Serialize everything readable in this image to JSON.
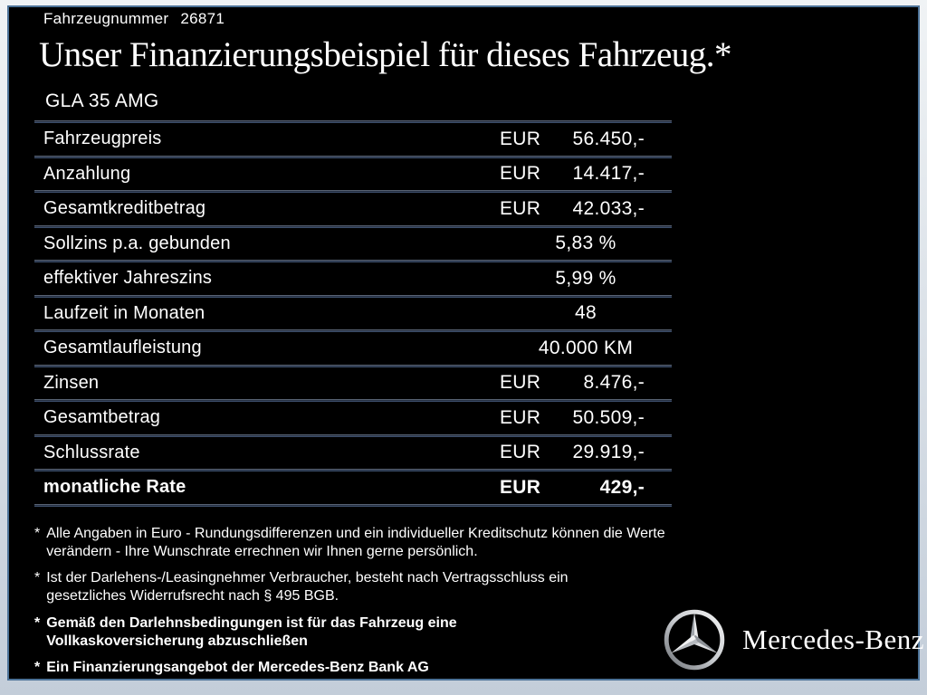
{
  "header": {
    "vehicle_number_label": "Fahrzeugnummer",
    "vehicle_number": "26871",
    "title": "Unser Finanzierungsbeispiel für dieses Fahrzeug.*",
    "model": "GLA 35 AMG"
  },
  "financing_table": {
    "rows": [
      {
        "label": "Fahrzeugpreis",
        "prefix": "EUR",
        "value": "56.450,-",
        "bold": false
      },
      {
        "label": "Anzahlung",
        "prefix": "EUR",
        "value": "14.417,-",
        "bold": false
      },
      {
        "label": "Gesamtkreditbetrag",
        "prefix": "EUR",
        "value": "42.033,-",
        "bold": false
      },
      {
        "label": "Sollzins p.a. gebunden",
        "prefix": "",
        "value": "5,83 %",
        "bold": false
      },
      {
        "label": "effektiver Jahreszins",
        "prefix": "",
        "value": "5,99 %",
        "bold": false
      },
      {
        "label": "Laufzeit in Monaten",
        "prefix": "",
        "value": "48",
        "bold": false
      },
      {
        "label": "Gesamtlaufleistung",
        "prefix": "",
        "value": "40.000 KM",
        "bold": false
      },
      {
        "label": "Zinsen",
        "prefix": "EUR",
        "value": "8.476,-",
        "bold": false
      },
      {
        "label": "Gesamtbetrag",
        "prefix": "EUR",
        "value": "50.509,-",
        "bold": false
      },
      {
        "label": "Schlussrate",
        "prefix": "EUR",
        "value": "29.919,-",
        "bold": false
      },
      {
        "label": "monatliche Rate",
        "prefix": "EUR",
        "value": "429,-",
        "bold": true
      }
    ]
  },
  "footnotes": [
    {
      "marker": "*",
      "bold": false,
      "text": "Alle Angaben in Euro - Rundungsdifferenzen und ein individueller Kreditschutz können die Werte verändern - Ihre Wunschrate errechnen wir Ihnen gerne persönlich."
    },
    {
      "marker": "*",
      "bold": false,
      "text": "Ist der Darlehens-/Leasingnehmer Verbraucher, besteht nach Vertragsschluss ein gesetzliches Widerrufsrecht nach § 495 BGB."
    },
    {
      "marker": "*",
      "bold": true,
      "text": "Gemäß den Darlehnsbedingungen ist für das Fahrzeug eine Vollkaskoversicherung abzuschließen"
    },
    {
      "marker": "*",
      "bold": true,
      "text": "Ein Finanzierungsangebot der Mercedes-Benz Bank AG"
    }
  ],
  "brand": {
    "wordmark": "Mercedes-Benz",
    "logo_icon": "mercedes-star-icon"
  },
  "colors": {
    "background": "#000000",
    "frame_border": "#4d7398",
    "divider_blue": "#4c6185",
    "text": "#ffffff",
    "page_margin_top": "#f0f3f5",
    "page_margin_bottom": "#c3cdd9"
  }
}
